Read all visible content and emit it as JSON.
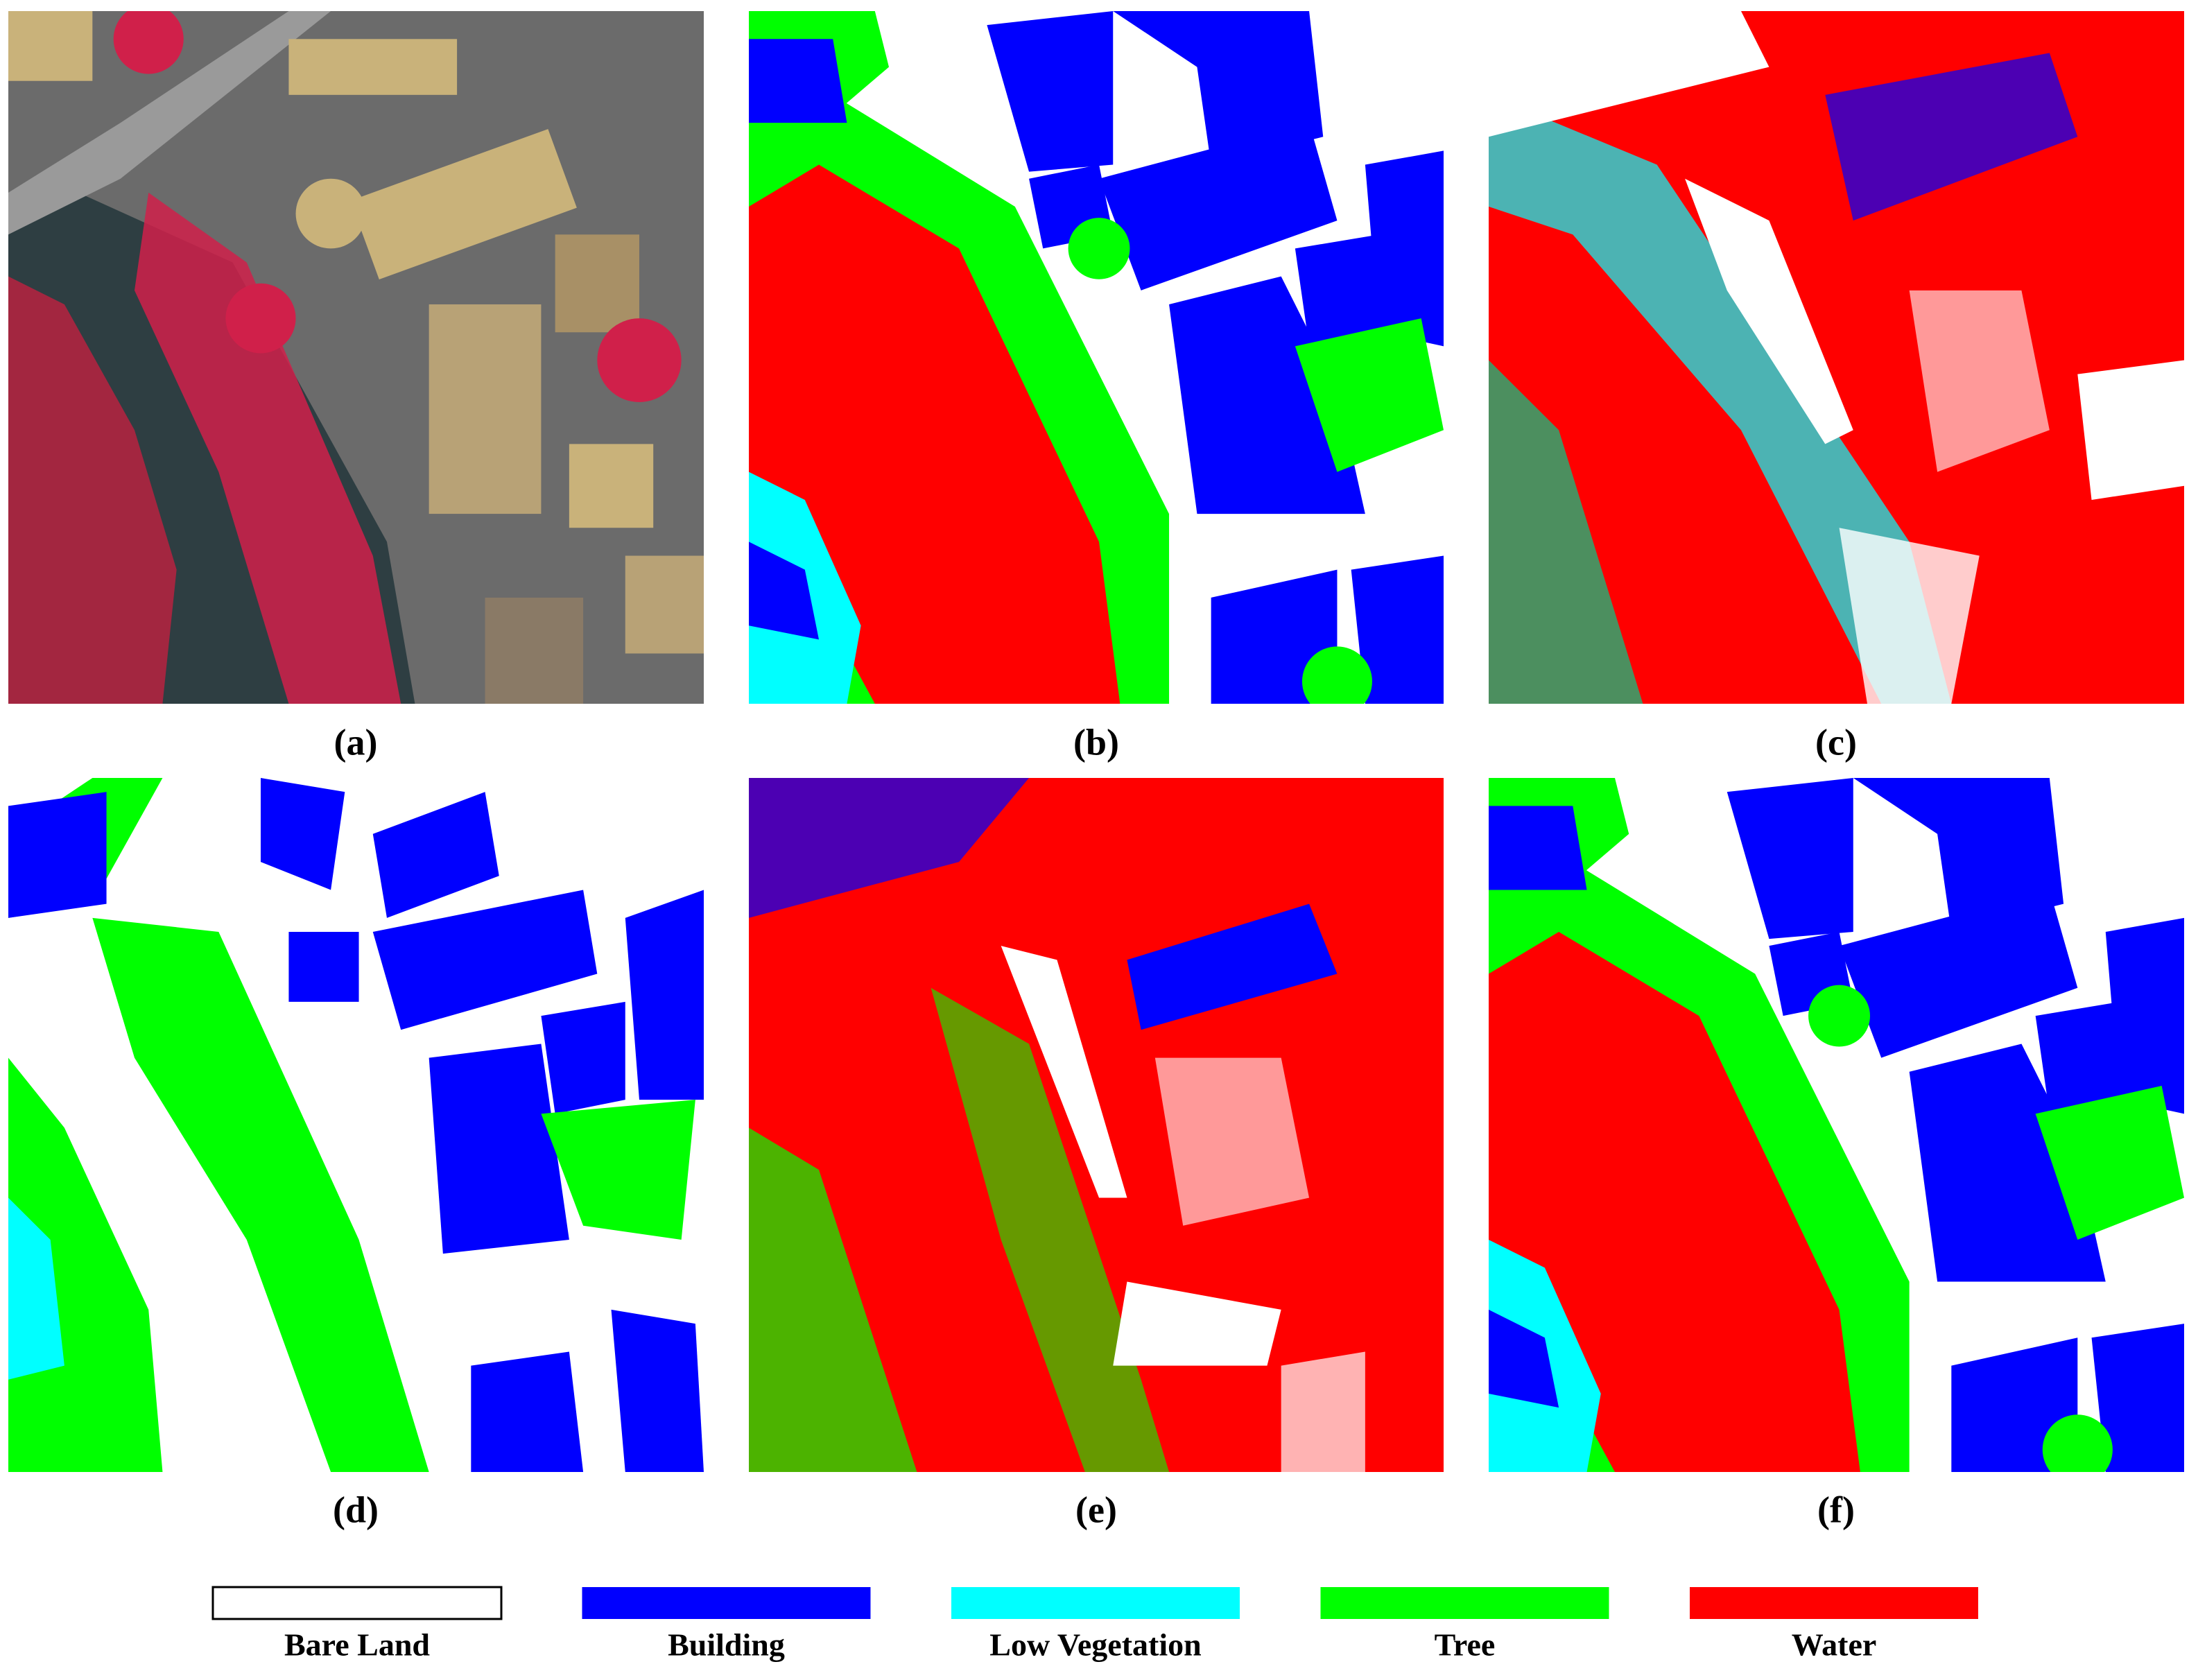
{
  "panels": [
    {
      "label": "(a)"
    },
    {
      "label": "(b)"
    },
    {
      "label": "(c)"
    },
    {
      "label": "(d)"
    },
    {
      "label": "(e)"
    },
    {
      "label": "(f)"
    }
  ],
  "legend": [
    {
      "name": "Bare Land",
      "color": "#ffffff"
    },
    {
      "name": "Building",
      "color": "#0000ff"
    },
    {
      "name": "Low Vegetation",
      "color": "#00ffff"
    },
    {
      "name": "Tree",
      "color": "#00ff00"
    },
    {
      "name": "Water",
      "color": "#ff0000"
    }
  ]
}
